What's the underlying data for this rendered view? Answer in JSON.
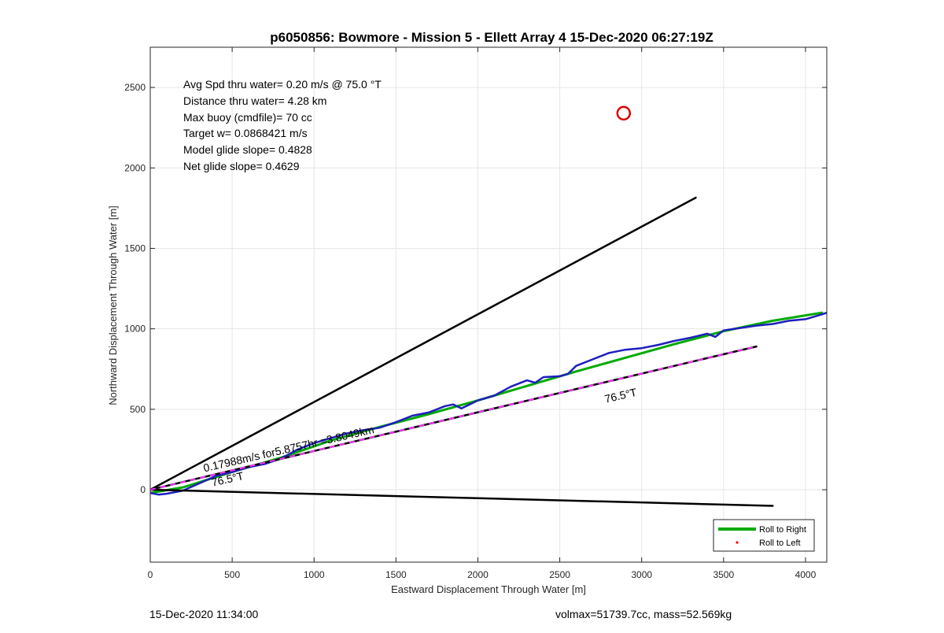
{
  "chart_data": {
    "type": "line",
    "title": "p6050856: Bowmore - Mission 5 - Ellett Array 4 15-Dec-2020 06:27:19Z",
    "xlabel": "Eastward Displacement Through Water [m]",
    "ylabel": "Northward Displacement Through Water [m]",
    "xlim": [
      0,
      4130
    ],
    "ylim": [
      -450,
      2750
    ],
    "xticks": [
      0,
      500,
      1000,
      1500,
      2000,
      2500,
      3000,
      3500,
      4000
    ],
    "yticks": [
      0,
      500,
      1000,
      1500,
      2000,
      2500
    ],
    "grid": true,
    "legend_position": "bottom-right",
    "info_lines": [
      "Avg Spd thru water=  0.20 m/s @  75.0 °T",
      "Distance thru water=  4.28 km",
      "Max buoy (cmdfile)= 70 cc",
      "Target w= 0.0868421 m/s",
      "Model glide slope= 0.4828",
      "Net glide slope= 0.4629"
    ],
    "annotations": [
      {
        "text": "0.17988m/s for5.8757hr =3.8049km",
        "x": 330,
        "y": 110,
        "rotation_deg": -12.9
      },
      {
        "text": "76.5°T",
        "x": 380,
        "y": 20,
        "rotation_deg": -12.9
      },
      {
        "text": "76.5°T",
        "x": 2780,
        "y": 540,
        "rotation_deg": -12.9
      }
    ],
    "series": [
      {
        "name": "Roll to Right",
        "color": "#00aa00",
        "style": "line",
        "x": [
          0,
          200,
          500,
          800,
          1100,
          1400,
          1700,
          2000,
          2300,
          2600,
          2900,
          3200,
          3500,
          3800,
          4100
        ],
        "y": [
          -20,
          15,
          110,
          200,
          305,
          390,
          470,
          555,
          645,
          735,
          820,
          905,
          985,
          1050,
          1100
        ]
      },
      {
        "name": "Roll to Left",
        "color": "#ff0000",
        "style": "points",
        "x": [],
        "y": []
      },
      {
        "name": "",
        "color": "#1f1fbf",
        "style": "line",
        "x": [
          0,
          50,
          100,
          150,
          200,
          300,
          400,
          500,
          600,
          700,
          800,
          900,
          1000,
          1100,
          1200,
          1300,
          1400,
          1500,
          1600,
          1700,
          1800,
          1850,
          1900,
          2000,
          2100,
          2200,
          2300,
          2350,
          2400,
          2500,
          2550,
          2600,
          2700,
          2800,
          2900,
          3000,
          3100,
          3200,
          3300,
          3400,
          3450,
          3500,
          3600,
          3700,
          3800,
          3900,
          4000,
          4100,
          4130
        ],
        "y": [
          -20,
          -30,
          -25,
          -15,
          -5,
          40,
          85,
          110,
          140,
          160,
          195,
          250,
          290,
          320,
          350,
          370,
          385,
          420,
          460,
          480,
          520,
          530,
          505,
          555,
          585,
          640,
          680,
          665,
          700,
          705,
          720,
          770,
          810,
          850,
          870,
          880,
          900,
          925,
          945,
          970,
          950,
          990,
          1005,
          1020,
          1030,
          1050,
          1060,
          1090,
          1100
        ]
      },
      {
        "name": "",
        "color": "#000000",
        "style": "line",
        "x": [
          0,
          3330
        ],
        "y": [
          0,
          1815
        ]
      },
      {
        "name": "",
        "color": "#000000",
        "style": "line",
        "x": [
          0,
          3800
        ],
        "y": [
          0,
          -100
        ]
      },
      {
        "name": "",
        "color": "#000000",
        "style": "line",
        "x": [
          0,
          3700
        ],
        "y": [
          0,
          890
        ]
      },
      {
        "name": "",
        "color": "#ff33ff",
        "style": "dashed",
        "x": [
          0,
          3700
        ],
        "y": [
          0,
          890
        ]
      },
      {
        "name": "",
        "color": "#dd0000",
        "style": "circle-marker",
        "x": [
          2890
        ],
        "y": [
          2340
        ]
      }
    ]
  },
  "footer": {
    "left": "15-Dec-2020 11:34:00",
    "right": "volmax=51739.7cc, mass=52.569kg"
  }
}
